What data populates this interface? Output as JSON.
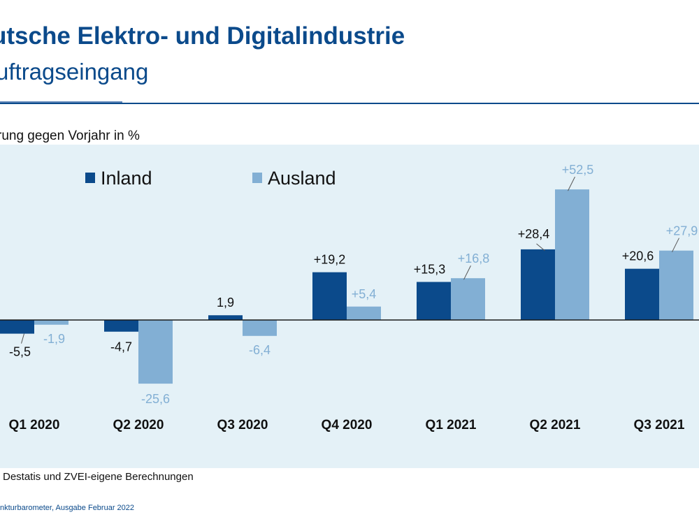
{
  "header": {
    "title": "utsche Elektro- und Digitalindustrie",
    "subtitle": "uftragseingang",
    "y_unit_label": "rung gegen Vorjahr in %"
  },
  "footer": {
    "source": "Destatis und ZVEI-eigene Berechnungen",
    "publication": "nkturbarometer, Ausgabe Februar 2022"
  },
  "colors": {
    "inland": "#0b4a8b",
    "ausland": "#82afd4",
    "plot_background": "#e4f1f7",
    "title": "#0b4a8b"
  },
  "chart_data": {
    "type": "bar",
    "categories": [
      "Q1 2020",
      "Q2 2020",
      "Q3 2020",
      "Q4 2020",
      "Q1 2021",
      "Q2 2021",
      "Q3 2021"
    ],
    "series": [
      {
        "name": "Inland",
        "values": [
          -5.5,
          -4.7,
          1.9,
          19.2,
          15.3,
          28.4,
          20.6
        ],
        "labels": [
          "-5,5",
          "-4,7",
          "1,9",
          "+19,2",
          "+15,3",
          "+28,4",
          "+20,6"
        ]
      },
      {
        "name": "Ausland",
        "values": [
          -1.9,
          -25.6,
          -6.4,
          5.4,
          16.8,
          52.5,
          27.9
        ],
        "labels": [
          "-1,9",
          "-25,6",
          "-6,4",
          "+5,4",
          "+16,8",
          "+52,5",
          "+27,9"
        ]
      }
    ],
    "ylim": [
      -34,
      68
    ],
    "grid": false,
    "legend": "top-left"
  }
}
